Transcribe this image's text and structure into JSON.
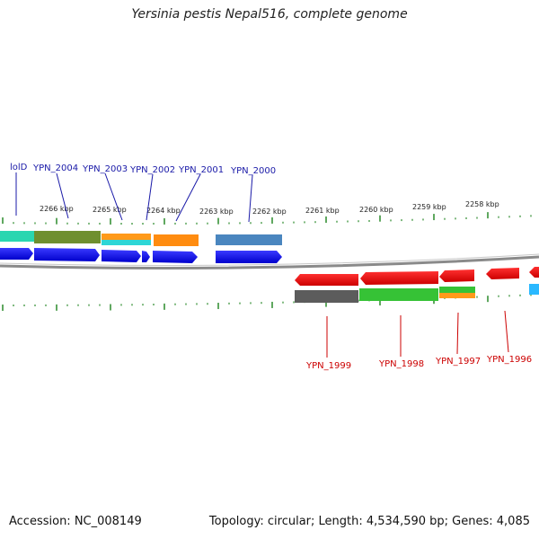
{
  "title": "Yersinia pestis Nepal516, complete genome",
  "footer": {
    "accession": "Accession: NC_008149",
    "summary": "Topology: circular; Length: 4,534,590 bp; Genes: 4,085"
  },
  "colors": {
    "forward_label": "#1a1aa8",
    "reverse_label": "#cc0000",
    "tick": "#2a8a2a",
    "backbone": "#777777"
  },
  "scale": {
    "tick_labels": [
      "2266 kbp",
      "2265 kbp",
      "2264 kbp",
      "2263 kbp",
      "2262 kbp",
      "2261 kbp",
      "2260 kbp",
      "2259 kbp",
      "2258 kbp"
    ]
  },
  "forward_labels": [
    "lolD",
    "YPN_2004",
    "YPN_2003",
    "YPN_2002",
    "YPN_2001",
    "YPN_2000"
  ],
  "reverse_labels": [
    "YPN_1999",
    "YPN_1998",
    "YPN_1997",
    "YPN_1996"
  ]
}
